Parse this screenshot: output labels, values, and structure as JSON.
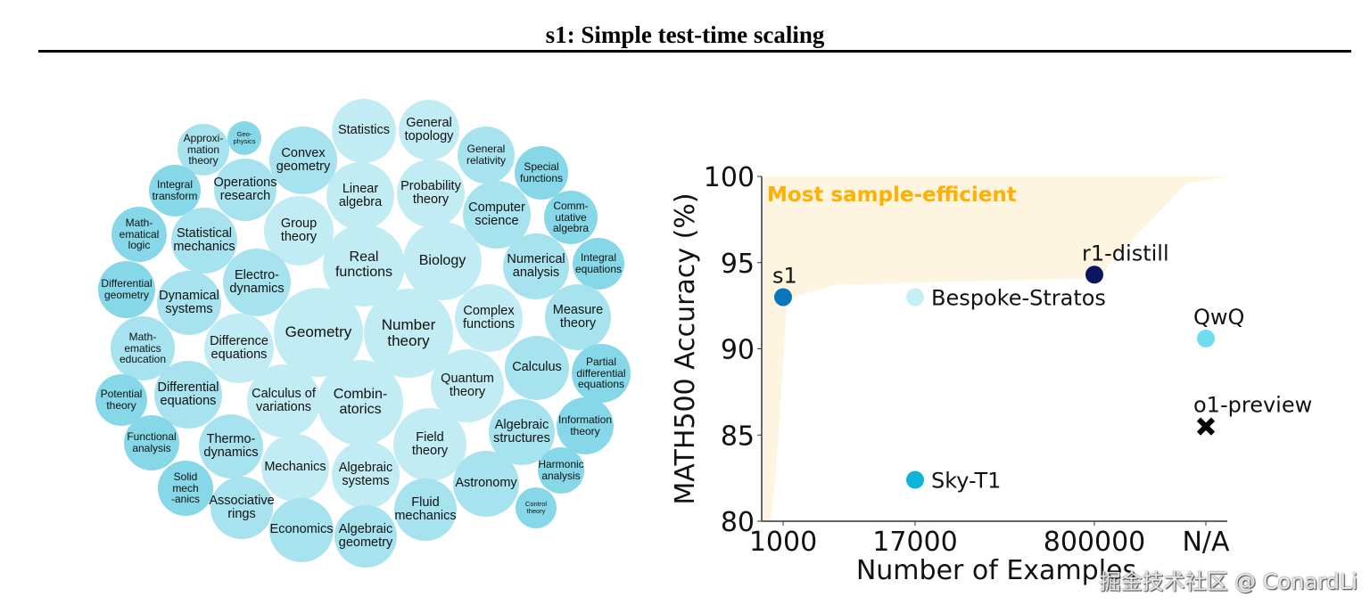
{
  "header": {
    "title": "s1: Simple test-time scaling"
  },
  "bubble_chart": {
    "colors": {
      "light": "#c2ecf3",
      "mid": "#a6e3ee",
      "dark": "#86d8e8"
    },
    "topics": [
      {
        "label": "Approxi-\nmation\ntheory",
        "shade": "mid",
        "size": "s"
      },
      {
        "label": "Geo-\nphysics",
        "shade": "dark",
        "size": "xs"
      },
      {
        "label": "Convex\ngeometry",
        "shade": "mid",
        "size": "m"
      },
      {
        "label": "Statistics",
        "shade": "light",
        "size": "m"
      },
      {
        "label": "General\ntopology",
        "shade": "light",
        "size": "m"
      },
      {
        "label": "General\nrelativity",
        "shade": "mid",
        "size": "s"
      },
      {
        "label": "Special\nfunctions",
        "shade": "dark",
        "size": "s"
      },
      {
        "label": "Integral\ntransform",
        "shade": "dark",
        "size": "s"
      },
      {
        "label": "Operations\nresearch",
        "shade": "mid",
        "size": "m"
      },
      {
        "label": "Linear\nalgebra",
        "shade": "light",
        "size": "m"
      },
      {
        "label": "Probability\ntheory",
        "shade": "light",
        "size": "m"
      },
      {
        "label": "Computer\nscience",
        "shade": "mid",
        "size": "m"
      },
      {
        "label": "Comm-\nutative\nalgebra",
        "shade": "dark",
        "size": "s"
      },
      {
        "label": "Math-\nematical\nlogic",
        "shade": "dark",
        "size": "s"
      },
      {
        "label": "Statistical\nmechanics",
        "shade": "mid",
        "size": "m"
      },
      {
        "label": "Group\ntheory",
        "shade": "light",
        "size": "m"
      },
      {
        "label": "Real\nfunctions",
        "shade": "light",
        "size": "l"
      },
      {
        "label": "Biology",
        "shade": "light",
        "size": "l"
      },
      {
        "label": "Numerical\nanalysis",
        "shade": "mid",
        "size": "m"
      },
      {
        "label": "Integral\nequations",
        "shade": "dark",
        "size": "s"
      },
      {
        "label": "Differential\ngeometry",
        "shade": "dark",
        "size": "s"
      },
      {
        "label": "Dynamical\nsystems",
        "shade": "mid",
        "size": "m"
      },
      {
        "label": "Electro-\ndynamics",
        "shade": "mid",
        "size": "m"
      },
      {
        "label": "Geometry",
        "shade": "light",
        "size": "xl"
      },
      {
        "label": "Number\ntheory",
        "shade": "light",
        "size": "xl"
      },
      {
        "label": "Complex\nfunctions",
        "shade": "light",
        "size": "m"
      },
      {
        "label": "Measure\ntheory",
        "shade": "mid",
        "size": "m"
      },
      {
        "label": "Math-\nematics\neducation",
        "shade": "mid",
        "size": "s"
      },
      {
        "label": "Difference\nequations",
        "shade": "light",
        "size": "m"
      },
      {
        "label": "Partial\ndifferential\nequations",
        "shade": "dark",
        "size": "s"
      },
      {
        "label": "Potential\ntheory",
        "shade": "dark",
        "size": "s"
      },
      {
        "label": "Differential\nequations",
        "shade": "mid",
        "size": "m"
      },
      {
        "label": "Calculus of\nvariations",
        "shade": "light",
        "size": "m"
      },
      {
        "label": "Combin-\natorics",
        "shade": "light",
        "size": "l"
      },
      {
        "label": "Quantum\ntheory",
        "shade": "light",
        "size": "m"
      },
      {
        "label": "Calculus",
        "shade": "mid",
        "size": "m"
      },
      {
        "label": "Information\ntheory",
        "shade": "dark",
        "size": "s"
      },
      {
        "label": "Functional\nanalysis",
        "shade": "dark",
        "size": "s"
      },
      {
        "label": "Thermo-\ndynamics",
        "shade": "mid",
        "size": "m"
      },
      {
        "label": "Mechanics",
        "shade": "light",
        "size": "m"
      },
      {
        "label": "Algebraic\nsystems",
        "shade": "light",
        "size": "m"
      },
      {
        "label": "Field\ntheory",
        "shade": "light",
        "size": "m"
      },
      {
        "label": "Algebraic\nstructures",
        "shade": "mid",
        "size": "m"
      },
      {
        "label": "Harmonic\nanalysis",
        "shade": "dark",
        "size": "s"
      },
      {
        "label": "Solid\nmech\n-anics",
        "shade": "dark",
        "size": "s"
      },
      {
        "label": "Associative\nrings",
        "shade": "mid",
        "size": "m"
      },
      {
        "label": "Astronomy",
        "shade": "mid",
        "size": "m"
      },
      {
        "label": "Economics",
        "shade": "mid",
        "size": "m"
      },
      {
        "label": "Algebraic\ngeometry",
        "shade": "mid",
        "size": "m"
      },
      {
        "label": "Fluid\nmechanics",
        "shade": "mid",
        "size": "m"
      },
      {
        "label": "Control\ntheory",
        "shade": "dark",
        "size": "xs"
      }
    ]
  },
  "chart_data": {
    "type": "scatter",
    "xlabel": "Number of Examples",
    "ylabel": "MATH500 Accuracy (%)",
    "x_categories": [
      "1000",
      "17000",
      "800000",
      "N/A"
    ],
    "ylim": [
      80,
      100
    ],
    "yticks": [
      80,
      85,
      90,
      95,
      100
    ],
    "grid": false,
    "annotation": {
      "text": "Most sample-efficient",
      "color": "#ffb000",
      "region_color": "#fdf5df"
    },
    "points": [
      {
        "label": "s1",
        "x": "1000",
        "y": 93.0,
        "color": "#0a77bb",
        "marker": "circle",
        "label_pos": "above"
      },
      {
        "label": "Bespoke-Stratos",
        "x": "17000",
        "y": 93.0,
        "color": "#c5eef5",
        "marker": "circle",
        "label_pos": "right"
      },
      {
        "label": "r1-distill",
        "x": "800000",
        "y": 94.3,
        "color": "#0b1560",
        "marker": "circle",
        "label_pos": "above"
      },
      {
        "label": "QwQ",
        "x": "N/A",
        "y": 90.6,
        "color": "#6fdcef",
        "marker": "circle",
        "label_pos": "above"
      },
      {
        "label": "o1-preview",
        "x": "N/A",
        "y": 85.5,
        "color": "#000000",
        "marker": "x",
        "label_pos": "above"
      },
      {
        "label": "Sky-T1",
        "x": "17000",
        "y": 82.4,
        "color": "#10b4d8",
        "marker": "circle",
        "label_pos": "right"
      }
    ]
  },
  "watermark": "掘金技术社区 @ ConardLi"
}
